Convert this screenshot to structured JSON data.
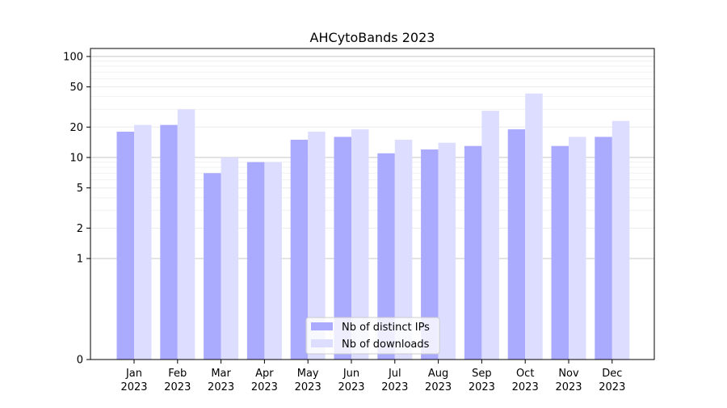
{
  "chart_data": {
    "type": "bar",
    "title": "AHCytoBands 2023",
    "xlabel": "",
    "ylabel": "",
    "yscale": "symlog",
    "ylim": [
      0,
      120
    ],
    "yticks": [
      0,
      1,
      2,
      5,
      10,
      20,
      50,
      100
    ],
    "grid": true,
    "legend_position": "bottom-center",
    "categories": [
      [
        "Jan",
        "2023"
      ],
      [
        "Feb",
        "2023"
      ],
      [
        "Mar",
        "2023"
      ],
      [
        "Apr",
        "2023"
      ],
      [
        "May",
        "2023"
      ],
      [
        "Jun",
        "2023"
      ],
      [
        "Jul",
        "2023"
      ],
      [
        "Aug",
        "2023"
      ],
      [
        "Sep",
        "2023"
      ],
      [
        "Oct",
        "2023"
      ],
      [
        "Nov",
        "2023"
      ],
      [
        "Dec",
        "2023"
      ]
    ],
    "series": [
      {
        "name": "Nb of distinct IPs",
        "color": "#aaaaff",
        "values": [
          18,
          21,
          7,
          9,
          15,
          16,
          11,
          12,
          13,
          19,
          13,
          16
        ]
      },
      {
        "name": "Nb of downloads",
        "color": "#ddddff",
        "values": [
          21,
          30,
          10,
          9,
          18,
          19,
          15,
          14,
          29,
          43,
          16,
          23
        ]
      }
    ]
  }
}
